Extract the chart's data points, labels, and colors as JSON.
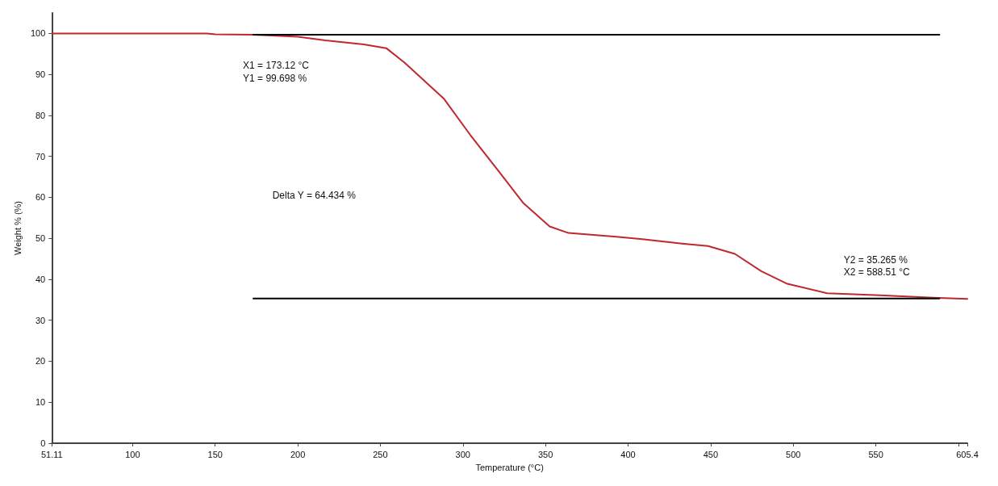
{
  "chart_data": {
    "type": "line",
    "xlabel": "Temperature (°C)",
    "ylabel": "Weight % (%)",
    "xlim": [
      51.11,
      605.4
    ],
    "ylim": [
      0,
      105
    ],
    "xticks": [
      {
        "value": 51.11,
        "label": "51.11"
      },
      100,
      150,
      200,
      250,
      300,
      350,
      400,
      450,
      500,
      550,
      {
        "value": 600,
        "label": null
      },
      {
        "value": 605.4,
        "label": "605.4"
      }
    ],
    "yticks": [
      0,
      10,
      20,
      30,
      40,
      50,
      60,
      70,
      80,
      90,
      100
    ],
    "grid": false,
    "marker": "none",
    "line_style": "solid",
    "series": [
      {
        "color": "#c0282d",
        "x": [
          51.11,
          145,
          150,
          173.12,
          200,
          216.7,
          240,
          253.6,
          264.6,
          288.6,
          304.5,
          320.8,
          336.6,
          352.5,
          363.9,
          392.8,
          408.6,
          432.6,
          448.4,
          464.7,
          480.6,
          496.4,
          520.4,
          552.5,
          584.7,
          605.4
        ],
        "values": [
          100,
          100,
          99.8,
          99.7,
          99.2,
          98.3,
          97.3,
          96.4,
          92.9,
          84.0,
          75.2,
          66.8,
          58.6,
          52.9,
          51.3,
          50.4,
          49.8,
          48.7,
          48.1,
          46.2,
          42.0,
          38.9,
          36.6,
          36.1,
          35.5,
          35.2
        ]
      },
      {
        "color": "#000000",
        "x": [
          173.1,
          588.5
        ],
        "values": [
          99.7,
          99.7
        ]
      },
      {
        "color": "#000000",
        "x": [
          173.1,
          588.5
        ],
        "values": [
          35.3,
          35.3
        ]
      }
    ],
    "annotations": [
      "X1 = 173.12 °C",
      "Y1 = 99.698 %",
      "Delta Y = 64.434 %",
      "Y2 = 35.265 %",
      "X2 = 588.51 °C"
    ]
  }
}
